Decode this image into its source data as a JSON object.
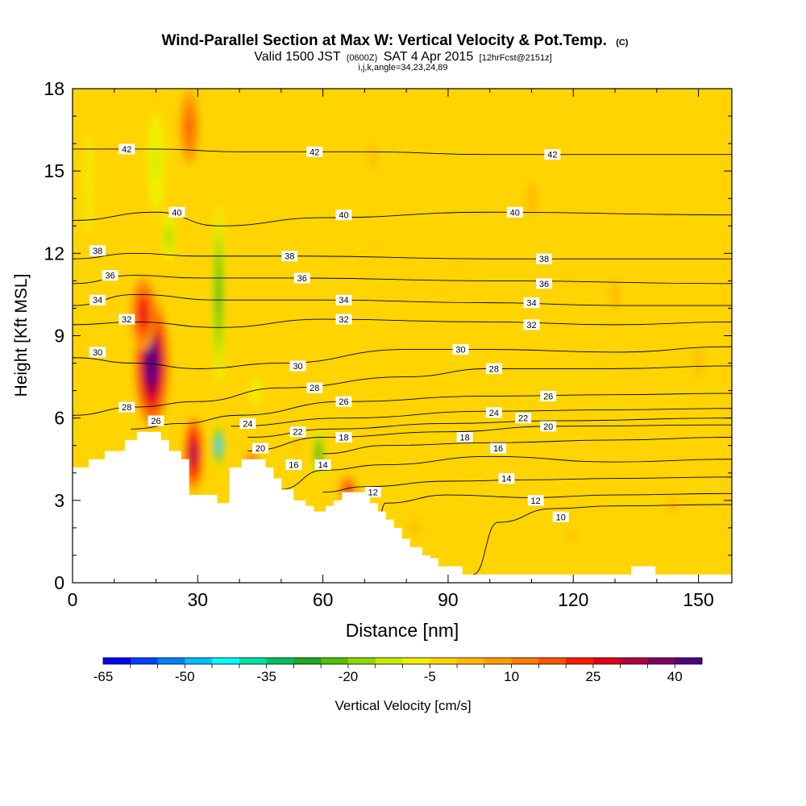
{
  "chart_data": {
    "type": "heatmap",
    "title": "Wind-Parallel Section at Max W: Vertical Velocity & Pot.Temp.",
    "title_mark": "(C)",
    "subtitle_prefix": "Valid 1500 JST",
    "subtitle_utc": "(0600Z)",
    "subtitle_date": "SAT 4 Apr 2015",
    "subtitle_fcst": "[12hrFcst@2151z]",
    "subtitle2": "i,j,k,angle=34,23,24,89",
    "xlabel": "Distance [nm]",
    "ylabel": "Height [Kft MSL]",
    "xlim": [
      0,
      158
    ],
    "ylim": [
      0,
      18
    ],
    "x_ticks": [
      "0",
      "30",
      "60",
      "90",
      "120",
      "150"
    ],
    "x_tick_values": [
      0,
      30,
      60,
      90,
      120,
      150
    ],
    "y_ticks": [
      "0",
      "3",
      "6",
      "9",
      "12",
      "15",
      "18"
    ],
    "y_tick_values": [
      0,
      3,
      6,
      9,
      12,
      15,
      18
    ],
    "background_color": "#ffd400",
    "colorbar": {
      "label": "Vertical Velocity [cm/s]",
      "tick_labels": [
        "-65",
        "-50",
        "-35",
        "-20",
        "-5",
        "10",
        "25",
        "40"
      ],
      "colors": [
        "#0000ff",
        "#0040ff",
        "#0080ff",
        "#00bfff",
        "#00ffff",
        "#00e0a0",
        "#00c060",
        "#20a820",
        "#50c000",
        "#90d800",
        "#c8ec00",
        "#f0f000",
        "#ffd400",
        "#ffba00",
        "#ff9c00",
        "#ff7c00",
        "#ff5400",
        "#ff1a00",
        "#e00020",
        "#b00040",
        "#800060",
        "#500080"
      ]
    },
    "topography_heights": [
      4.2,
      4.2,
      4.2,
      4.2,
      4.5,
      4.5,
      4.5,
      4.5,
      4.8,
      4.8,
      4.8,
      4.8,
      4.8,
      5.2,
      5.2,
      5.2,
      5.5,
      5.5,
      5.5,
      5.5,
      5.5,
      5.5,
      5.2,
      5.2,
      4.8,
      4.8,
      4.8,
      4.5,
      4.5,
      3.2,
      3.2,
      3.2,
      3.2,
      3.2,
      3.2,
      3.2,
      2.9,
      2.9,
      2.9,
      4.2,
      4.2,
      4.2,
      4.5,
      4.5,
      4.5,
      4.5,
      4.5,
      4.5,
      4.2,
      4.2,
      3.8,
      3.8,
      3.4,
      3.4,
      3.4,
      3.0,
      3.0,
      3.0,
      2.8,
      2.8,
      2.6,
      2.6,
      2.6,
      2.8,
      2.8,
      3.0,
      3.0,
      3.3,
      3.3,
      3.3,
      3.3,
      3.3,
      3.3,
      3.3,
      2.9,
      2.9,
      2.6,
      2.6,
      2.3,
      2.3,
      2.0,
      2.0,
      1.6,
      1.6,
      1.3,
      1.3,
      1.3,
      1.0,
      1.0,
      0.9,
      0.9,
      0.6,
      0.6,
      0.6,
      0.6,
      0.6,
      0.6,
      0.3,
      0.3,
      0.3,
      0.3,
      0.3,
      0.3,
      0.3,
      0.3,
      0.3,
      0.3,
      0.3,
      0.3,
      0.3,
      0.3,
      0.3,
      0.3,
      0.3,
      0.3,
      0.3,
      0.3,
      0.3,
      0.3,
      0.3,
      0.3,
      0.3,
      0.3,
      0.3,
      0.3,
      0.3,
      0.3,
      0.3,
      0.3,
      0.3,
      0.3,
      0.3,
      0.3,
      0.3,
      0.3,
      0.3,
      0.3,
      0.3,
      0.3,
      0.6,
      0.6,
      0.6,
      0.6,
      0.6,
      0.6,
      0.3,
      0.3,
      0.3,
      0.3,
      0.3,
      0.3,
      0.3,
      0.3,
      0.3,
      0.3,
      0.3,
      0.3,
      0.3,
      0.3,
      0.3,
      0.3,
      0.3,
      0.3,
      0.3
    ],
    "velocity_features": [
      {
        "x": 19,
        "y": 8.0,
        "rx": 4.5,
        "ry": 2.6,
        "w": 45
      },
      {
        "x": 17,
        "y": 9.8,
        "rx": 3.5,
        "ry": 1.6,
        "w": 25
      },
      {
        "x": 29,
        "y": 4.7,
        "rx": 2.5,
        "ry": 1.5,
        "w": 38
      },
      {
        "x": 28,
        "y": 16.6,
        "rx": 3,
        "ry": 1.8,
        "w": 15
      },
      {
        "x": 66,
        "y": 3.4,
        "rx": 2.5,
        "ry": 0.6,
        "w": 20
      },
      {
        "x": 43,
        "y": 4.3,
        "rx": 2,
        "ry": 0.6,
        "w": 18
      },
      {
        "x": 35,
        "y": 10.5,
        "rx": 2,
        "ry": 4.5,
        "w": -26
      },
      {
        "x": 35,
        "y": 5.0,
        "rx": 1.6,
        "ry": 0.9,
        "w": -50
      },
      {
        "x": 20,
        "y": 15.3,
        "rx": 3.5,
        "ry": 3.0,
        "w": -14
      },
      {
        "x": 23,
        "y": 12.6,
        "rx": 2.5,
        "ry": 1.5,
        "w": -18
      },
      {
        "x": 4,
        "y": 14.5,
        "rx": 2,
        "ry": 4.0,
        "w": -10
      },
      {
        "x": 59,
        "y": 4.7,
        "rx": 1.8,
        "ry": 1.2,
        "w": -30
      },
      {
        "x": 44,
        "y": 7.0,
        "rx": 2.5,
        "ry": 1.2,
        "w": -10
      },
      {
        "x": 54,
        "y": 5.0,
        "rx": 3,
        "ry": 0.8,
        "w": 3
      },
      {
        "x": 110,
        "y": 14.0,
        "rx": 6,
        "ry": 3.0,
        "w": 2
      },
      {
        "x": 72,
        "y": 15.5,
        "rx": 4,
        "ry": 2.5,
        "w": 2
      },
      {
        "x": 130,
        "y": 10.5,
        "rx": 5,
        "ry": 3.0,
        "w": 2
      },
      {
        "x": 150,
        "y": 8.0,
        "rx": 5,
        "ry": 2.5,
        "w": 3
      },
      {
        "x": 82,
        "y": 2.0,
        "rx": 5,
        "ry": 1.6,
        "w": 2
      },
      {
        "x": 120,
        "y": 1.7,
        "rx": 5,
        "ry": 1.0,
        "w": 2
      },
      {
        "x": 144,
        "y": 2.8,
        "rx": 6,
        "ry": 1.2,
        "w": 2
      }
    ],
    "isentropes": [
      {
        "label": "10",
        "points": [
          [
            96,
            0.3
          ],
          [
            102,
            2.2
          ],
          [
            115,
            2.7
          ],
          [
            130,
            2.8
          ],
          [
            158,
            2.85
          ]
        ]
      },
      {
        "label": "12",
        "points": [
          [
            72,
            1.0
          ],
          [
            75,
            2.9
          ],
          [
            90,
            3.2
          ],
          [
            110,
            3.1
          ],
          [
            130,
            3.2
          ],
          [
            158,
            3.25
          ]
        ]
      },
      {
        "label": "14",
        "points": [
          [
            60,
            3.3
          ],
          [
            70,
            3.5
          ],
          [
            90,
            3.7
          ],
          [
            110,
            3.75
          ],
          [
            130,
            3.8
          ],
          [
            158,
            3.85
          ]
        ]
      },
      {
        "label": "16",
        "points": [
          [
            50,
            3.4
          ],
          [
            60,
            4.1
          ],
          [
            75,
            4.3
          ],
          [
            100,
            4.6
          ],
          [
            130,
            4.4
          ],
          [
            158,
            4.5
          ]
        ]
      },
      {
        "label": "18",
        "points": [
          [
            60,
            4.7
          ],
          [
            75,
            5.0
          ],
          [
            100,
            5.1
          ],
          [
            130,
            5.2
          ],
          [
            158,
            5.3
          ]
        ]
      },
      {
        "label": "20",
        "points": [
          [
            42,
            4.8
          ],
          [
            60,
            5.3
          ],
          [
            90,
            5.5
          ],
          [
            115,
            5.7
          ],
          [
            158,
            5.75
          ]
        ]
      },
      {
        "label": "22",
        "points": [
          [
            42,
            5.3
          ],
          [
            62,
            5.6
          ],
          [
            90,
            5.8
          ],
          [
            115,
            5.9
          ],
          [
            158,
            6.0
          ]
        ]
      },
      {
        "label": "24",
        "points": [
          [
            38,
            5.7
          ],
          [
            65,
            6.0
          ],
          [
            100,
            6.25
          ],
          [
            130,
            6.3
          ],
          [
            158,
            6.35
          ]
        ]
      },
      {
        "label": "26",
        "points": [
          [
            14,
            5.6
          ],
          [
            26,
            5.8
          ],
          [
            40,
            6.1
          ],
          [
            65,
            6.6
          ],
          [
            100,
            6.8
          ],
          [
            130,
            6.85
          ],
          [
            158,
            6.9
          ]
        ]
      },
      {
        "label": "28",
        "points": [
          [
            0,
            6.1
          ],
          [
            15,
            6.4
          ],
          [
            30,
            6.6
          ],
          [
            50,
            7.1
          ],
          [
            80,
            7.5
          ],
          [
            100,
            7.8
          ],
          [
            130,
            7.8
          ],
          [
            158,
            7.9
          ]
        ]
      },
      {
        "label": "30",
        "points": [
          [
            0,
            8.2
          ],
          [
            15,
            8.0
          ],
          [
            30,
            7.8
          ],
          [
            50,
            8.0
          ],
          [
            80,
            8.5
          ],
          [
            100,
            8.5
          ],
          [
            130,
            8.4
          ],
          [
            158,
            8.6
          ]
        ]
      },
      {
        "label": "32",
        "points": [
          [
            0,
            9.4
          ],
          [
            15,
            9.5
          ],
          [
            35,
            9.3
          ],
          [
            60,
            9.6
          ],
          [
            100,
            9.5
          ],
          [
            130,
            9.4
          ],
          [
            158,
            9.5
          ]
        ]
      },
      {
        "label": "34",
        "points": [
          [
            0,
            10.1
          ],
          [
            15,
            10.5
          ],
          [
            35,
            10.3
          ],
          [
            60,
            10.3
          ],
          [
            100,
            10.2
          ],
          [
            130,
            10.1
          ],
          [
            158,
            10.1
          ]
        ]
      },
      {
        "label": "36",
        "points": [
          [
            0,
            10.9
          ],
          [
            15,
            11.2
          ],
          [
            30,
            11.1
          ],
          [
            55,
            11.1
          ],
          [
            100,
            11.0
          ],
          [
            158,
            10.9
          ]
        ]
      },
      {
        "label": "38",
        "points": [
          [
            0,
            11.8
          ],
          [
            15,
            12.0
          ],
          [
            30,
            11.9
          ],
          [
            55,
            11.9
          ],
          [
            100,
            11.8
          ],
          [
            158,
            11.8
          ]
        ]
      },
      {
        "label": "40",
        "points": [
          [
            0,
            13.2
          ],
          [
            20,
            13.5
          ],
          [
            35,
            13.0
          ],
          [
            60,
            13.3
          ],
          [
            100,
            13.5
          ],
          [
            158,
            13.4
          ]
        ]
      },
      {
        "label": "42",
        "points": [
          [
            0,
            15.8
          ],
          [
            20,
            15.8
          ],
          [
            40,
            15.7
          ],
          [
            70,
            15.7
          ],
          [
            100,
            15.6
          ],
          [
            158,
            15.6
          ]
        ]
      }
    ],
    "contour_labels": [
      {
        "text": "42",
        "x": 13,
        "y": 15.8
      },
      {
        "text": "42",
        "x": 58,
        "y": 15.7
      },
      {
        "text": "42",
        "x": 115,
        "y": 15.6
      },
      {
        "text": "40",
        "x": 25,
        "y": 13.5
      },
      {
        "text": "40",
        "x": 65,
        "y": 13.4
      },
      {
        "text": "40",
        "x": 106,
        "y": 13.5
      },
      {
        "text": "38",
        "x": 6,
        "y": 12.1
      },
      {
        "text": "38",
        "x": 52,
        "y": 11.9
      },
      {
        "text": "38",
        "x": 113,
        "y": 11.8
      },
      {
        "text": "36",
        "x": 9,
        "y": 11.2
      },
      {
        "text": "36",
        "x": 55,
        "y": 11.1
      },
      {
        "text": "36",
        "x": 113,
        "y": 10.9
      },
      {
        "text": "34",
        "x": 6,
        "y": 10.3
      },
      {
        "text": "34",
        "x": 65,
        "y": 10.3
      },
      {
        "text": "34",
        "x": 110,
        "y": 10.2
      },
      {
        "text": "32",
        "x": 13,
        "y": 9.6
      },
      {
        "text": "32",
        "x": 65,
        "y": 9.6
      },
      {
        "text": "32",
        "x": 110,
        "y": 9.4
      },
      {
        "text": "30",
        "x": 6,
        "y": 8.4
      },
      {
        "text": "30",
        "x": 54,
        "y": 7.9
      },
      {
        "text": "30",
        "x": 93,
        "y": 8.5
      },
      {
        "text": "28",
        "x": 13,
        "y": 6.4
      },
      {
        "text": "28",
        "x": 58,
        "y": 7.1
      },
      {
        "text": "28",
        "x": 101,
        "y": 7.8
      },
      {
        "text": "26",
        "x": 20,
        "y": 5.9
      },
      {
        "text": "26",
        "x": 65,
        "y": 6.6
      },
      {
        "text": "26",
        "x": 114,
        "y": 6.8
      },
      {
        "text": "24",
        "x": 42,
        "y": 5.8
      },
      {
        "text": "24",
        "x": 101,
        "y": 6.2
      },
      {
        "text": "22",
        "x": 54,
        "y": 5.5
      },
      {
        "text": "22",
        "x": 108,
        "y": 6.0
      },
      {
        "text": "20",
        "x": 45,
        "y": 4.9
      },
      {
        "text": "20",
        "x": 114,
        "y": 5.7
      },
      {
        "text": "18",
        "x": 65,
        "y": 5.3
      },
      {
        "text": "18",
        "x": 94,
        "y": 5.3
      },
      {
        "text": "16",
        "x": 53,
        "y": 4.3
      },
      {
        "text": "16",
        "x": 102,
        "y": 4.9
      },
      {
        "text": "14",
        "x": 60,
        "y": 4.3
      },
      {
        "text": "14",
        "x": 104,
        "y": 3.8
      },
      {
        "text": "12",
        "x": 72,
        "y": 3.3
      },
      {
        "text": "12",
        "x": 111,
        "y": 3.0
      },
      {
        "text": "10",
        "x": 117,
        "y": 2.4
      }
    ]
  }
}
